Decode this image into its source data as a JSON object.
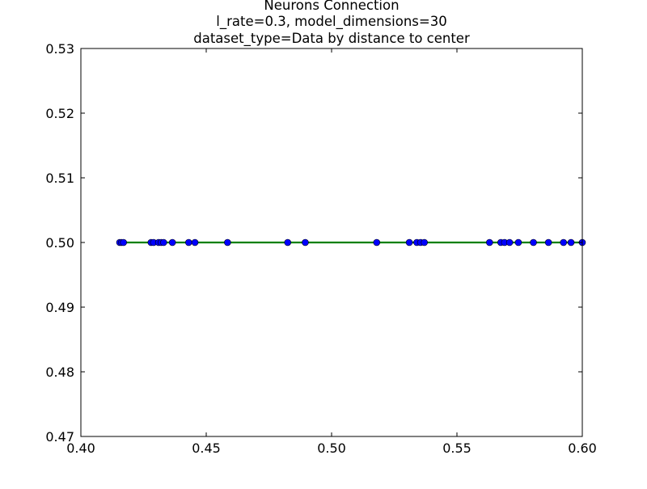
{
  "chart_data": {
    "type": "line",
    "title_lines": [
      "Neurons Connection",
      "l_rate=0.3, model_dimensions=30",
      "dataset_type=Data by distance to center"
    ],
    "xlabel": "",
    "ylabel": "",
    "xlim": [
      0.4,
      0.6
    ],
    "ylim": [
      0.47,
      0.53
    ],
    "x_ticks": [
      0.4,
      0.45,
      0.5,
      0.55,
      0.6
    ],
    "x_tick_labels": [
      "0.40",
      "0.45",
      "0.50",
      "0.55",
      "0.60"
    ],
    "y_ticks": [
      0.47,
      0.48,
      0.49,
      0.5,
      0.51,
      0.52,
      0.53
    ],
    "y_tick_labels": [
      "0.47",
      "0.48",
      "0.49",
      "0.50",
      "0.51",
      "0.52",
      "0.53"
    ],
    "grid": false,
    "legend": "none",
    "series": [
      {
        "line_color": "#008000",
        "marker_color": "#0000ff",
        "marker": "circle",
        "x": [
          0.4155,
          0.4162,
          0.417,
          0.428,
          0.429,
          0.431,
          0.432,
          0.433,
          0.4365,
          0.443,
          0.4455,
          0.4585,
          0.4825,
          0.4895,
          0.518,
          0.531,
          0.534,
          0.5355,
          0.537,
          0.563,
          0.5675,
          0.569,
          0.571,
          0.5745,
          0.5805,
          0.5865,
          0.5925,
          0.5955,
          0.6
        ],
        "y": [
          0.5,
          0.5,
          0.5,
          0.5,
          0.5,
          0.5,
          0.5,
          0.5,
          0.5,
          0.5,
          0.5,
          0.5,
          0.5,
          0.5,
          0.5,
          0.5,
          0.5,
          0.5,
          0.5,
          0.5,
          0.5,
          0.5,
          0.5,
          0.5,
          0.5,
          0.5,
          0.5,
          0.5,
          0.5
        ]
      }
    ]
  }
}
